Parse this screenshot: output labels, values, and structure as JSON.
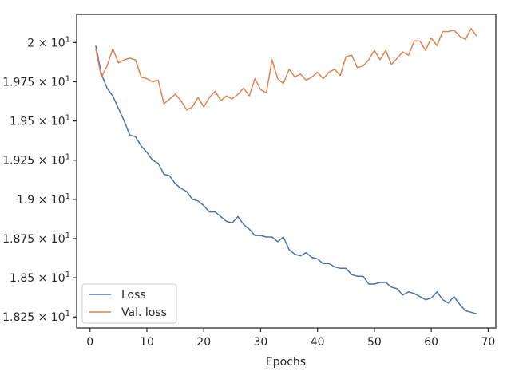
{
  "chart_data": {
    "type": "line",
    "title": "",
    "xlabel": "Epochs",
    "ylabel": "",
    "xlim": [
      -2.35,
      71.35
    ],
    "ylim": [
      18.18,
      20.18
    ],
    "x_ticks": [
      0,
      10,
      20,
      30,
      40,
      50,
      60,
      70
    ],
    "y_ticks": [
      {
        "value": 18.25,
        "label": "1.825 × 10",
        "exp": "1"
      },
      {
        "value": 18.5,
        "label": "1.85 × 10",
        "exp": "1"
      },
      {
        "value": 18.75,
        "label": "1.875 × 10",
        "exp": "1"
      },
      {
        "value": 19.0,
        "label": "1.9 × 10",
        "exp": "1"
      },
      {
        "value": 19.25,
        "label": "1.925 × 10",
        "exp": "1"
      },
      {
        "value": 19.5,
        "label": "1.95 × 10",
        "exp": "1"
      },
      {
        "value": 19.75,
        "label": "1.975 × 10",
        "exp": "1"
      },
      {
        "value": 20.0,
        "label": "2 × 10",
        "exp": "1"
      }
    ],
    "grid": false,
    "legend_position": "lower-left",
    "x": [
      1,
      2,
      3,
      4,
      5,
      6,
      7,
      8,
      9,
      10,
      11,
      12,
      13,
      14,
      15,
      16,
      17,
      18,
      19,
      20,
      21,
      22,
      23,
      24,
      25,
      26,
      27,
      28,
      29,
      30,
      31,
      32,
      33,
      34,
      35,
      36,
      37,
      38,
      39,
      40,
      41,
      42,
      43,
      44,
      45,
      46,
      47,
      48,
      49,
      50,
      51,
      52,
      53,
      54,
      55,
      56,
      57,
      58,
      59,
      60,
      61,
      62,
      63,
      64,
      65,
      66,
      67,
      68
    ],
    "series": [
      {
        "name": "Loss",
        "color": "#4c72b0",
        "values": [
          19.98,
          19.8,
          19.71,
          19.66,
          19.58,
          19.5,
          19.41,
          19.4,
          19.34,
          19.3,
          19.25,
          19.23,
          19.16,
          19.15,
          19.1,
          19.07,
          19.05,
          19.0,
          18.99,
          18.96,
          18.92,
          18.92,
          18.89,
          18.86,
          18.85,
          18.89,
          18.84,
          18.81,
          18.77,
          18.77,
          18.76,
          18.76,
          18.73,
          18.76,
          18.68,
          18.65,
          18.64,
          18.66,
          18.63,
          18.62,
          18.59,
          18.59,
          18.57,
          18.56,
          18.56,
          18.52,
          18.51,
          18.51,
          18.46,
          18.46,
          18.47,
          18.47,
          18.44,
          18.43,
          18.39,
          18.41,
          18.4,
          18.38,
          18.36,
          18.37,
          18.41,
          18.36,
          18.34,
          18.38,
          18.33,
          18.29,
          18.28,
          18.27
        ]
      },
      {
        "name": "Val. loss",
        "color": "#dd8452",
        "values": [
          19.96,
          19.78,
          19.85,
          19.96,
          19.87,
          19.89,
          19.9,
          19.89,
          19.78,
          19.77,
          19.75,
          19.76,
          19.61,
          19.64,
          19.67,
          19.63,
          19.57,
          19.59,
          19.65,
          19.59,
          19.65,
          19.69,
          19.63,
          19.66,
          19.64,
          19.67,
          19.71,
          19.66,
          19.77,
          19.7,
          19.68,
          19.89,
          19.77,
          19.74,
          19.83,
          19.78,
          19.8,
          19.76,
          19.78,
          19.81,
          19.77,
          19.81,
          19.83,
          19.79,
          19.91,
          19.92,
          19.84,
          19.85,
          19.89,
          19.95,
          19.89,
          19.95,
          19.86,
          19.9,
          19.94,
          19.92,
          20.01,
          20.01,
          19.95,
          20.03,
          19.98,
          20.07,
          20.07,
          20.08,
          20.04,
          20.02,
          20.09,
          20.04
        ]
      }
    ]
  }
}
